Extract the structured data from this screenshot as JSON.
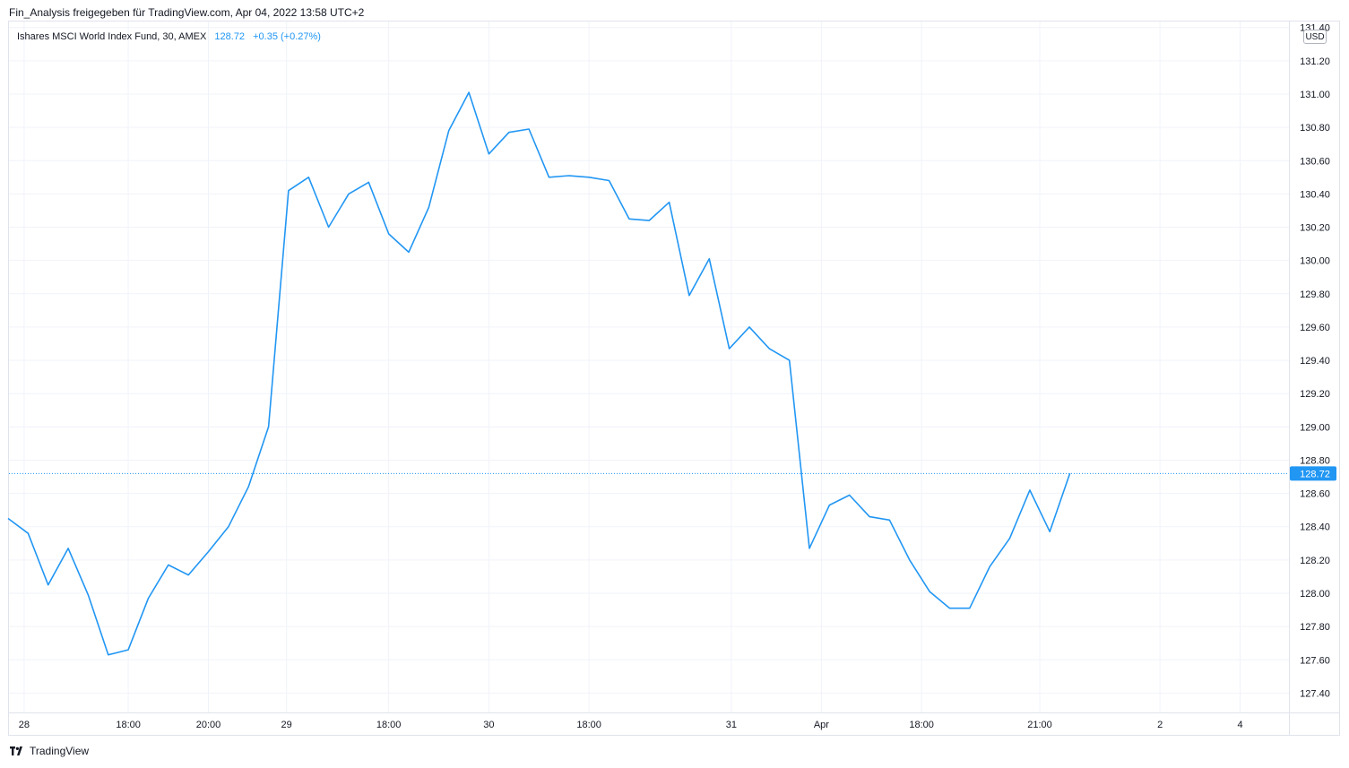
{
  "header": {
    "caption": "Fin_Analysis freigegeben für TradingView.com, Apr 04, 2022 13:58 UTC+2"
  },
  "legend": {
    "symbol": "Ishares MSCI World Index Fund, 30, AMEX",
    "last": "128.72",
    "change": "+0.35 (+0.27%)"
  },
  "currency_label": "USD",
  "footer": {
    "brand": "TradingView"
  },
  "colors": {
    "line": "#2196f3",
    "grid": "#f0f3fa",
    "axis_text": "#131722",
    "price_tag": "#2196f3"
  },
  "chart_data": {
    "type": "line",
    "title": "",
    "xlabel": "",
    "ylabel": "",
    "ylim": [
      127.3,
      131.4
    ],
    "grid": true,
    "y_ticks": [
      "127.40",
      "127.60",
      "127.80",
      "128.00",
      "128.20",
      "128.40",
      "128.60",
      "128.80",
      "129.00",
      "129.20",
      "129.40",
      "129.60",
      "129.80",
      "130.00",
      "130.20",
      "130.40",
      "130.60",
      "130.80",
      "131.00",
      "131.20",
      "131.40"
    ],
    "x_ticks": [
      {
        "label": "28",
        "idx": 0.8
      },
      {
        "label": "18:00",
        "idx": 6
      },
      {
        "label": "20:00",
        "idx": 10
      },
      {
        "label": "29",
        "idx": 13.9
      },
      {
        "label": "18:00",
        "idx": 19
      },
      {
        "label": "30",
        "idx": 24
      },
      {
        "label": "18:00",
        "idx": 29
      },
      {
        "label": "31",
        "idx": 36.1
      },
      {
        "label": "Apr",
        "idx": 40.6
      },
      {
        "label": "18:00",
        "idx": 45.6
      },
      {
        "label": "21:00",
        "idx": 51.5
      },
      {
        "label": "2",
        "idx": 57.5
      },
      {
        "label": "4",
        "idx": 61.5
      }
    ],
    "last_value": 128.72,
    "series": [
      {
        "values": [
          128.45,
          128.36,
          128.05,
          128.27,
          127.99,
          127.63,
          127.66,
          127.97,
          128.17,
          128.11,
          128.25,
          128.4,
          128.64,
          129.0,
          130.42,
          130.5,
          130.2,
          130.4,
          130.47,
          130.16,
          130.05,
          130.32,
          130.78,
          131.01,
          130.64,
          130.77,
          130.79,
          130.5,
          130.51,
          130.5,
          130.48,
          130.25,
          130.24,
          130.35,
          129.79,
          130.01,
          129.47,
          129.6,
          129.47,
          129.4,
          128.27,
          128.53,
          128.59,
          128.46,
          128.44,
          128.2,
          128.01,
          127.91,
          127.91,
          128.16,
          128.33,
          128.62,
          128.37,
          128.72
        ]
      }
    ]
  }
}
